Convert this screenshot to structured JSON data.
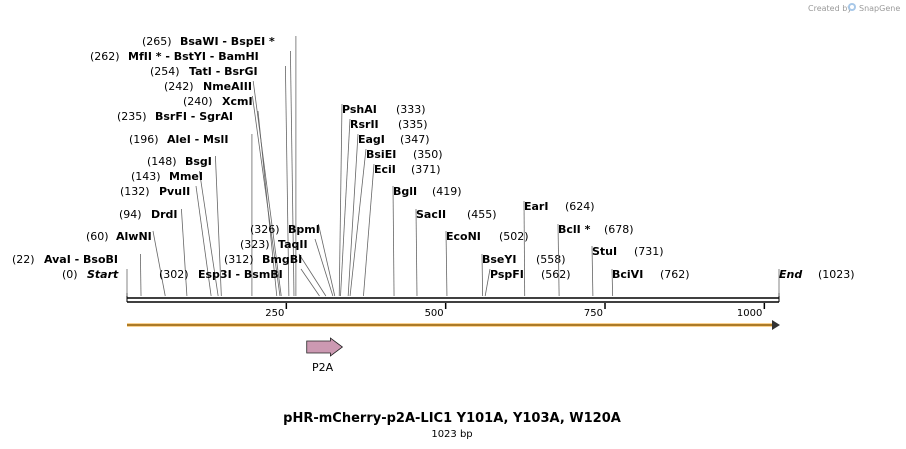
{
  "credit": "Created by",
  "brand": "SnapGene",
  "title": "pHR-mCherry-p2A-LIC1 Y101A, Y103A, W120A",
  "length_label": "1023 bp",
  "bp_total": 1023,
  "ticks": [
    {
      "bp": 250,
      "label": "250"
    },
    {
      "bp": 500,
      "label": "500"
    },
    {
      "bp": 750,
      "label": "750"
    },
    {
      "bp": 1000,
      "label": "1000"
    }
  ],
  "feature": {
    "name": "P2A",
    "start": 282,
    "end": 338,
    "color": "#cc99b2"
  },
  "strand_color": "#f5a623",
  "sites": [
    {
      "text": "(0)",
      "name": "Start",
      "italic": true
    },
    {
      "text": "(22)",
      "name": "AvaI  -  BsoBI"
    },
    {
      "text": "(60)",
      "name": "AlwNI"
    },
    {
      "text": "(94)",
      "name": "DrdI"
    },
    {
      "text": "(132)",
      "name": "PvuII"
    },
    {
      "text": "(143)",
      "name": "MmeI"
    },
    {
      "text": "(148)",
      "name": "BsgI"
    },
    {
      "text": "(196)",
      "name": "AleI  -  MslI"
    },
    {
      "text": "(235)",
      "name": "BsrFI  -  SgrAI"
    },
    {
      "text": "(240)",
      "name": "XcmI"
    },
    {
      "text": "(242)",
      "name": "NmeAIII"
    },
    {
      "text": "(254)",
      "name": "TatI  -  BsrGI"
    },
    {
      "text": "(262)",
      "name": "MfII * - BstYI  -  BamHI"
    },
    {
      "text": "(265)",
      "name": "BsaWI  -  BspEI *"
    },
    {
      "text": "(302)",
      "name": "Esp3I  -  BsmBI"
    },
    {
      "text": "(312)",
      "name": "BmgBI"
    },
    {
      "text": "(323)",
      "name": "TaqII"
    },
    {
      "text": "(326)",
      "name": "BpmI"
    },
    {
      "text": "(333)",
      "name": "PshAI"
    },
    {
      "text": "(335)",
      "name": "RsrII"
    },
    {
      "text": "(347)",
      "name": "EagI"
    },
    {
      "text": "(350)",
      "name": "BsiEI"
    },
    {
      "text": "(371)",
      "name": "EciI"
    },
    {
      "text": "(419)",
      "name": "BglI"
    },
    {
      "text": "(455)",
      "name": "SacII"
    },
    {
      "text": "(502)",
      "name": "EcoNI"
    },
    {
      "text": "(558)",
      "name": "BseYI"
    },
    {
      "text": "(562)",
      "name": "PspFI"
    },
    {
      "text": "(624)",
      "name": "EarI"
    },
    {
      "text": "(678)",
      "name": "BclI *"
    },
    {
      "text": "(731)",
      "name": "StuI"
    },
    {
      "text": "(762)",
      "name": "BciVI"
    },
    {
      "text": "(1023)",
      "name": "End",
      "italic": true
    }
  ]
}
